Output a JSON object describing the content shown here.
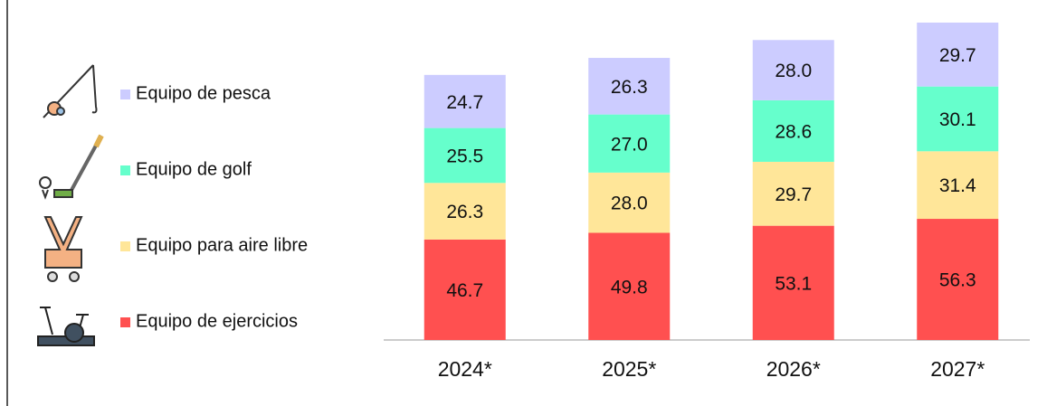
{
  "chart_data": {
    "type": "stacked_bar",
    "categories": [
      "2024*",
      "2025*",
      "2026*",
      "2027*"
    ],
    "series": [
      {
        "name": "Equipo de ejercicios",
        "color": "#ff5050",
        "values": [
          46.7,
          49.8,
          53.1,
          56.3
        ]
      },
      {
        "name": "Equipo para aire libre",
        "color": "#ffe699",
        "values": [
          26.3,
          28.0,
          29.7,
          31.4
        ],
        "value_labels": [
          "26.3",
          "28.0",
          "29.7",
          "31.4"
        ]
      },
      {
        "name": "Equipo de golf",
        "color": "#66ffcc",
        "values": [
          25.5,
          27.0,
          28.6,
          30.1
        ],
        "value_labels": [
          "25.5",
          "27.0",
          "28.6",
          "30.1"
        ]
      },
      {
        "name": "Equipo de pesca",
        "color": "#ccccff",
        "values": [
          24.7,
          26.3,
          28.0,
          29.7
        ],
        "value_labels": [
          "24.7",
          "26.3",
          "28.0",
          "29.7"
        ]
      }
    ]
  }
}
